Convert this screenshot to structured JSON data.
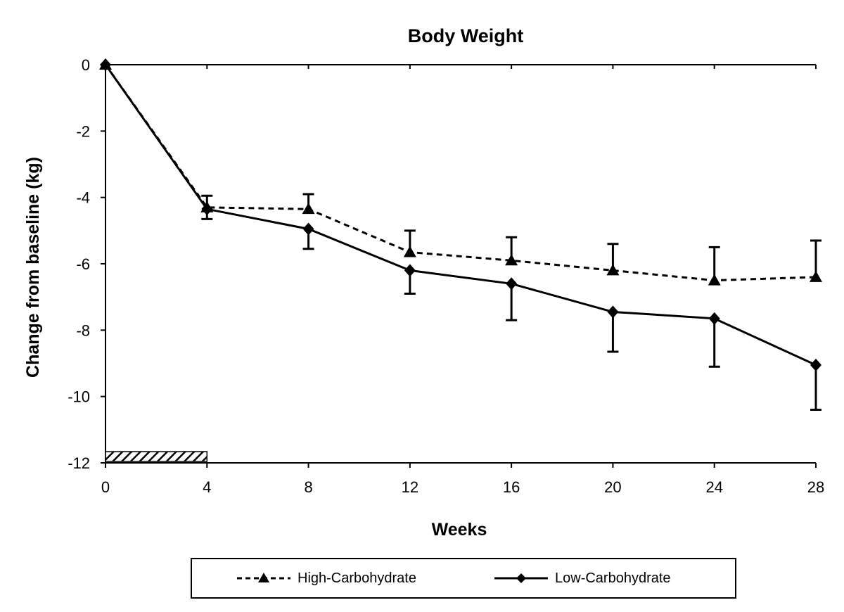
{
  "chart_data": {
    "type": "line",
    "title": "Body Weight",
    "xlabel": "Weeks",
    "ylabel": "Change from baseline (kg)",
    "x": [
      0,
      4,
      8,
      12,
      16,
      20,
      24,
      28
    ],
    "xlim": [
      0,
      28
    ],
    "ylim": [
      -12,
      0
    ],
    "xticks": [
      "0",
      "4",
      "8",
      "12",
      "16",
      "20",
      "24",
      "28"
    ],
    "yticks": [
      "0",
      "-2",
      "-4",
      "-6",
      "-8",
      "-10",
      "-12"
    ],
    "grid": false,
    "legend_position": "bottom",
    "shaded_bar": {
      "x_start": 0,
      "x_end": 4,
      "pattern": "diagonal hatch"
    },
    "series": [
      {
        "name": "High-Carbohydrate",
        "line_style": "dashed",
        "marker": "triangle",
        "values": [
          0,
          -4.3,
          -4.35,
          -5.65,
          -5.9,
          -6.2,
          -6.5,
          -6.4
        ],
        "error_bars": [
          0,
          0.35,
          0.45,
          0.65,
          0.7,
          0.8,
          1.0,
          1.1
        ]
      },
      {
        "name": "Low-Carbohydrate",
        "line_style": "solid",
        "marker": "diamond",
        "values": [
          0,
          -4.35,
          -4.95,
          -6.2,
          -6.6,
          -7.45,
          -7.65,
          -9.05
        ],
        "error_bars": [
          0,
          0.3,
          0.6,
          0.7,
          1.1,
          1.2,
          1.45,
          1.35
        ]
      }
    ],
    "colors": {
      "line": "#000000",
      "background": "#ffffff"
    }
  }
}
